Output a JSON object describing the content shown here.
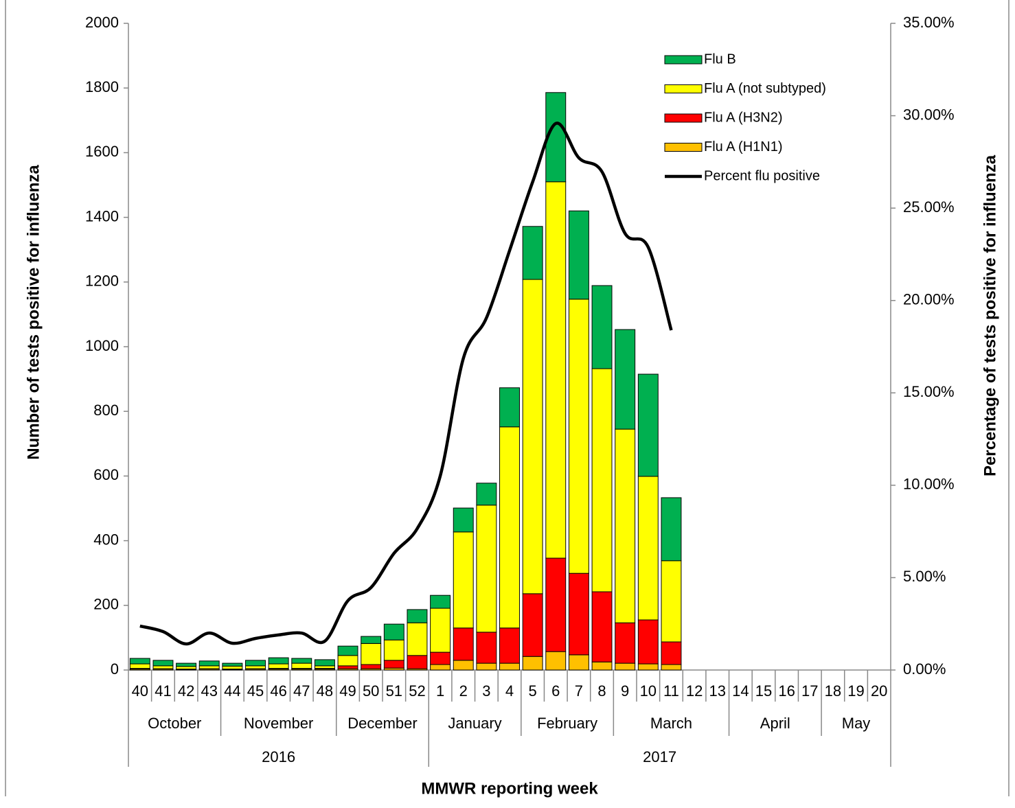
{
  "chart_data": {
    "type": "bar",
    "stacked": true,
    "x_label": "MMWR reporting week",
    "y_label": "Number of tests positive for influenza",
    "y2_label": "Percentage  of  tests  positive for influenza",
    "categories": [
      "40",
      "41",
      "42",
      "43",
      "44",
      "45",
      "46",
      "47",
      "48",
      "49",
      "50",
      "51",
      "52",
      "1",
      "2",
      "3",
      "4",
      "5",
      "6",
      "7",
      "8",
      "9",
      "10",
      "11",
      "12",
      "13",
      "14",
      "15",
      "16",
      "17",
      "18",
      "19",
      "20"
    ],
    "months": [
      "October",
      "October",
      "October",
      "October",
      "November",
      "November",
      "November",
      "November",
      "November",
      "December",
      "December",
      "December",
      "December",
      "January",
      "January",
      "January",
      "January",
      "February",
      "February",
      "February",
      "February",
      "March",
      "March",
      "March",
      "March",
      "March",
      "April",
      "April",
      "April",
      "April",
      "May",
      "May",
      "May"
    ],
    "years": [
      "2016",
      "2016",
      "2016",
      "2016",
      "2016",
      "2016",
      "2016",
      "2016",
      "2016",
      "2016",
      "2016",
      "2016",
      "2016",
      "2017",
      "2017",
      "2017",
      "2017",
      "2017",
      "2017",
      "2017",
      "2017",
      "2017",
      "2017",
      "2017",
      "2017",
      "2017",
      "2017",
      "2017",
      "2017",
      "2017",
      "2017",
      "2017",
      "2017"
    ],
    "series": [
      {
        "name": "Flu A (H1N1)",
        "color": "#ffc000",
        "values": [
          3,
          3,
          2,
          3,
          2,
          3,
          3,
          3,
          3,
          4,
          4,
          6,
          4,
          17,
          30,
          21,
          21,
          42,
          57,
          47,
          25,
          21,
          19,
          17,
          null,
          null,
          null,
          null,
          null,
          null,
          null,
          null,
          null
        ]
      },
      {
        "name": "Flu A (H3N2)",
        "color": "#ff0000",
        "values": [
          2,
          1,
          1,
          1,
          1,
          1,
          2,
          2,
          2,
          9,
          13,
          24,
          41,
          38,
          100,
          96,
          109,
          194,
          289,
          252,
          217,
          125,
          136,
          70,
          null,
          null,
          null,
          null,
          null,
          null,
          null,
          null,
          null
        ]
      },
      {
        "name": "Flu A (not subtyped)",
        "color": "#ffff00",
        "values": [
          14,
          9,
          8,
          9,
          9,
          9,
          14,
          16,
          8,
          32,
          65,
          63,
          101,
          136,
          297,
          393,
          622,
          972,
          1164,
          848,
          690,
          599,
          444,
          251,
          null,
          null,
          null,
          null,
          null,
          null,
          null,
          null,
          null
        ]
      },
      {
        "name": "Flu B",
        "color": "#00b050",
        "values": [
          17,
          17,
          10,
          15,
          9,
          17,
          19,
          15,
          19,
          29,
          22,
          49,
          41,
          40,
          74,
          68,
          121,
          164,
          276,
          273,
          257,
          308,
          316,
          195,
          null,
          null,
          null,
          null,
          null,
          null,
          null,
          null,
          null
        ]
      },
      {
        "name": "Percent flu positive",
        "color": "#000000",
        "type": "line",
        "axis": "y2",
        "values": [
          2.38,
          2.08,
          1.41,
          2.0,
          1.45,
          1.71,
          1.9,
          2.0,
          1.56,
          3.75,
          4.46,
          6.32,
          7.65,
          10.51,
          16.87,
          19.06,
          22.7,
          26.42,
          29.58,
          27.72,
          26.97,
          23.63,
          22.89,
          18.39,
          null,
          null,
          null,
          null,
          null,
          null,
          null,
          null,
          null
        ]
      }
    ],
    "ylim": [
      0,
      2000
    ],
    "yticks": [
      0,
      200,
      400,
      600,
      800,
      1000,
      1200,
      1400,
      1600,
      1800,
      2000
    ],
    "y2lim": [
      0,
      35
    ],
    "y2ticks": [
      {
        "value": 0,
        "label": "0.00%"
      },
      {
        "value": 5,
        "label": "5.00%"
      },
      {
        "value": 10,
        "label": "10.00%"
      },
      {
        "value": 15,
        "label": "15.00%"
      },
      {
        "value": 20,
        "label": "20.00%"
      },
      {
        "value": 25,
        "label": "25.00%"
      },
      {
        "value": 30,
        "label": "30.00%"
      },
      {
        "value": 35,
        "label": "35.00%"
      }
    ],
    "grid": false,
    "legend": "top-right"
  }
}
